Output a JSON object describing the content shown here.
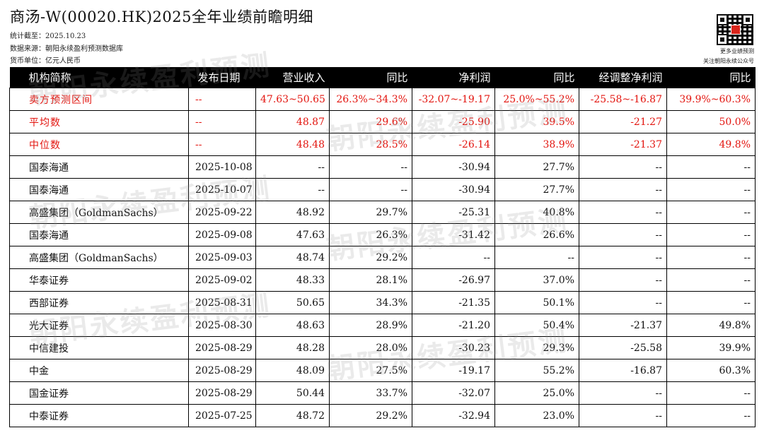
{
  "header": {
    "title": "商汤-W(00020.HK)2025全年业绩前瞻明细",
    "stat_date": "统计截至：2025.10.23",
    "source": "数据来源：朝阳永续盈利预测数据库",
    "currency": "货币单位：亿元人民币"
  },
  "qr": {
    "caption1": "更多业绩预测",
    "caption2": "关注朝阳永续公众号"
  },
  "watermark": "朝阳永续盈利预测",
  "table": {
    "headers": [
      "机构简称",
      "发布日期",
      "营业收入",
      "同比",
      "净利润",
      "同比",
      "经调整净利润",
      "同比"
    ],
    "summary_rows": [
      [
        "卖方预测区间",
        "--",
        "47.63~50.65",
        "26.3%~34.3%",
        "-32.07~-19.17",
        "25.0%~55.2%",
        "-25.58~-16.87",
        "39.9%~60.3%"
      ],
      [
        "平均数",
        "--",
        "48.87",
        "29.6%",
        "-25.90",
        "39.5%",
        "-21.27",
        "50.0%"
      ],
      [
        "中位数",
        "--",
        "48.48",
        "28.5%",
        "-26.14",
        "38.9%",
        "-21.37",
        "49.8%"
      ]
    ],
    "rows": [
      [
        "国泰海通",
        "2025-10-08",
        "--",
        "--",
        "-30.94",
        "27.7%",
        "--",
        "--"
      ],
      [
        "国泰海通",
        "2025-10-07",
        "--",
        "--",
        "-30.94",
        "27.7%",
        "--",
        "--"
      ],
      [
        "高盛集团（GoldmanSachs）",
        "2025-09-22",
        "48.92",
        "29.7%",
        "-25.31",
        "40.8%",
        "--",
        "--"
      ],
      [
        "国泰海通",
        "2025-09-08",
        "47.63",
        "26.3%",
        "-31.42",
        "26.6%",
        "--",
        "--"
      ],
      [
        "高盛集团（GoldmanSachs）",
        "2025-09-03",
        "48.74",
        "29.2%",
        "--",
        "--",
        "--",
        "--"
      ],
      [
        "华泰证券",
        "2025-09-02",
        "48.33",
        "28.1%",
        "-26.97",
        "37.0%",
        "--",
        "--"
      ],
      [
        "西部证券",
        "2025-08-31",
        "50.65",
        "34.3%",
        "-21.35",
        "50.1%",
        "--",
        "--"
      ],
      [
        "光大证券",
        "2025-08-30",
        "48.63",
        "28.9%",
        "-21.20",
        "50.4%",
        "-21.37",
        "49.8%"
      ],
      [
        "中信建投",
        "2025-08-29",
        "48.28",
        "28.0%",
        "-30.23",
        "29.3%",
        "-25.58",
        "39.9%"
      ],
      [
        "中金",
        "2025-08-29",
        "48.09",
        "27.5%",
        "-19.17",
        "55.2%",
        "-16.87",
        "60.3%"
      ],
      [
        "国金证券",
        "2025-08-29",
        "50.44",
        "33.7%",
        "-32.07",
        "25.0%",
        "--",
        "--"
      ],
      [
        "中泰证券",
        "2025-07-25",
        "48.72",
        "29.2%",
        "-32.94",
        "23.0%",
        "--",
        "--"
      ]
    ]
  },
  "colors": {
    "header_bg": "#000000",
    "header_text": "#ffffff",
    "summary_text": "#e3150f",
    "body_text": "#111111"
  }
}
